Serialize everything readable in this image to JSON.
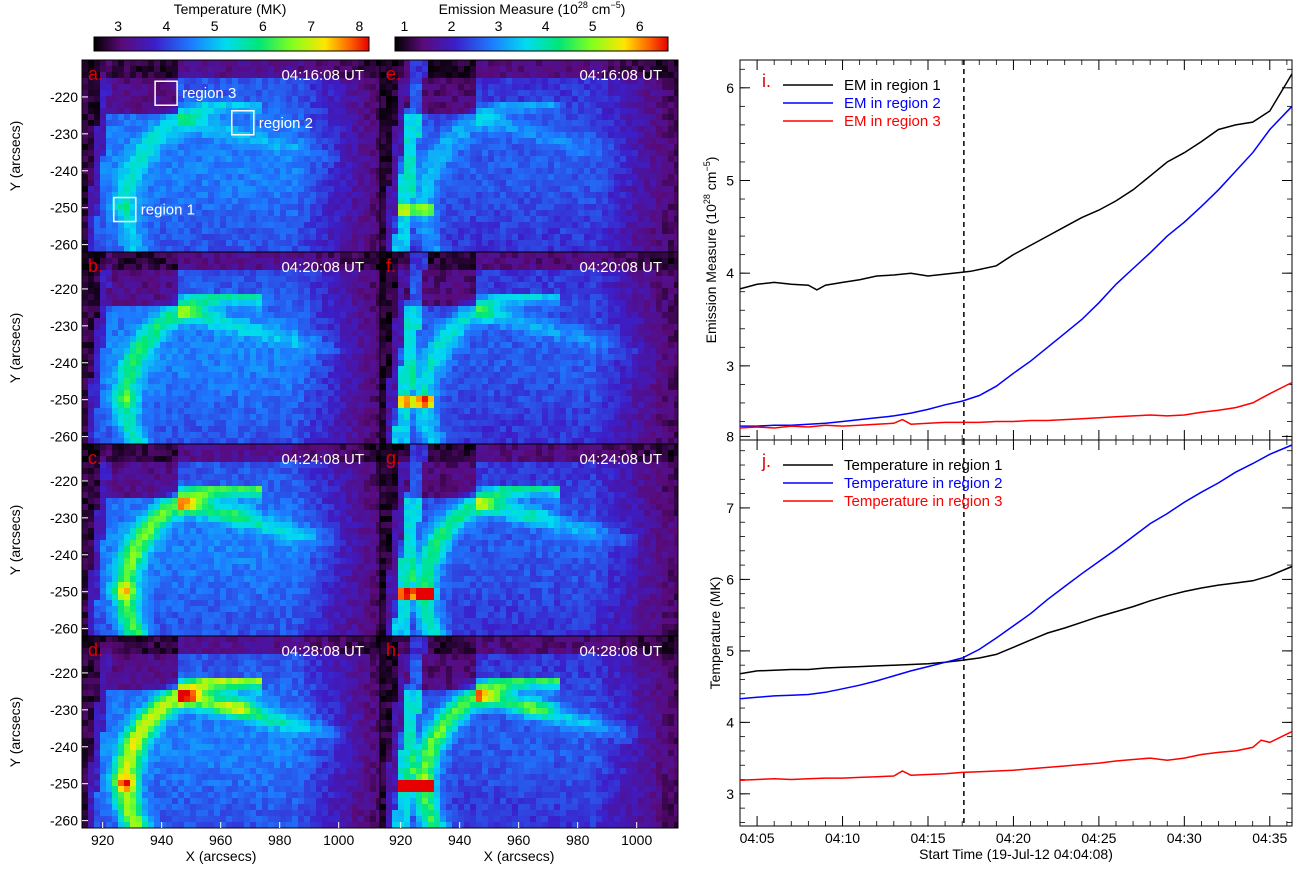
{
  "chart_data": [
    {
      "type": "heatmap",
      "colorbar": {
        "label": "Temperature (MK)",
        "ticks": [
          "3",
          "4",
          "5",
          "6",
          "7",
          "8"
        ],
        "range": [
          2.5,
          8.2
        ]
      },
      "xlabel": "X (arcsecs)",
      "ylabel": "Y (arcsecs)",
      "xticks": [
        "920",
        "940",
        "960",
        "980",
        "1000"
      ],
      "yticks": [
        "-220",
        "-230",
        "-240",
        "-250",
        "-260"
      ],
      "xlim": [
        913,
        1014
      ],
      "ylim": [
        -262,
        -210
      ],
      "panels": [
        {
          "letter": "a.",
          "time": "04:16:08 UT"
        },
        {
          "letter": "b.",
          "time": "04:20:08 UT"
        },
        {
          "letter": "c.",
          "time": "04:24:08 UT"
        },
        {
          "letter": "d.",
          "time": "04:28:08 UT"
        }
      ],
      "regions": [
        {
          "label": "region 1",
          "x": 927.5,
          "y": -250.5
        },
        {
          "label": "region 2",
          "x": 967.5,
          "y": -227
        },
        {
          "label": "region 3",
          "x": 941.5,
          "y": -219
        }
      ]
    },
    {
      "type": "heatmap",
      "colorbar": {
        "label_main": "Emission Measure (10",
        "label_exp": "28",
        "label_unit": " cm",
        "label_exp2": "−5",
        "label_close": ")",
        "ticks": [
          "1",
          "2",
          "3",
          "4",
          "5",
          "6"
        ],
        "range": [
          0.8,
          6.6
        ]
      },
      "xlabel": "X (arcsecs)",
      "xticks": [
        "920",
        "940",
        "960",
        "980",
        "1000"
      ],
      "xlim": [
        913,
        1014
      ],
      "ylim": [
        -262,
        -210
      ],
      "panels": [
        {
          "letter": "e.",
          "time": "04:16:08 UT"
        },
        {
          "letter": "f.",
          "time": "04:20:08 UT"
        },
        {
          "letter": "g.",
          "time": "04:24:08 UT"
        },
        {
          "letter": "h.",
          "time": "04:28:08 UT"
        }
      ]
    },
    {
      "type": "line",
      "panel_letter": "i.",
      "ylabel_main": "Emission Measure (10",
      "ylabel_exp": "28",
      "ylabel_unit": " cm",
      "ylabel_exp2": "−5",
      "ylabel_close": ")",
      "ylim": [
        2.2,
        6.3
      ],
      "yticks": [
        "3",
        "4",
        "5",
        "6"
      ],
      "xlim": [
        4.0,
        36.3
      ],
      "x_units": "minutes after 04:00 UT",
      "vline_x": 17.1,
      "series": [
        {
          "name": "EM in region 1",
          "color": "#000000",
          "x": [
            4.0,
            5,
            6,
            7,
            8,
            8.5,
            9,
            10,
            11,
            12,
            13,
            14,
            15,
            16,
            17,
            17.5,
            18,
            19,
            20,
            20.5,
            21,
            22,
            23,
            24,
            25,
            26,
            27,
            28,
            29,
            30,
            31,
            32,
            33,
            34,
            35,
            36.3
          ],
          "y": [
            3.83,
            3.88,
            3.9,
            3.88,
            3.87,
            3.82,
            3.87,
            3.9,
            3.93,
            3.97,
            3.98,
            4.0,
            3.97,
            3.99,
            4.01,
            4.02,
            4.04,
            4.08,
            4.2,
            4.25,
            4.3,
            4.4,
            4.5,
            4.6,
            4.68,
            4.78,
            4.9,
            5.05,
            5.2,
            5.3,
            5.42,
            5.55,
            5.6,
            5.63,
            5.75,
            6.15
          ]
        },
        {
          "name": "EM in region 2",
          "color": "#0000ff",
          "x": [
            4.0,
            5,
            6,
            7,
            8,
            9,
            10,
            11,
            12,
            13,
            14,
            15,
            16,
            17,
            18,
            19,
            20,
            21,
            22,
            23,
            24,
            25,
            26,
            27,
            28,
            29,
            30,
            31,
            32,
            33,
            34,
            35,
            36.3
          ],
          "y": [
            2.35,
            2.35,
            2.36,
            2.36,
            2.37,
            2.38,
            2.4,
            2.42,
            2.44,
            2.46,
            2.49,
            2.53,
            2.58,
            2.62,
            2.68,
            2.78,
            2.92,
            3.05,
            3.2,
            3.35,
            3.5,
            3.68,
            3.88,
            4.05,
            4.22,
            4.4,
            4.55,
            4.72,
            4.9,
            5.1,
            5.3,
            5.55,
            5.8
          ]
        },
        {
          "name": "EM in region 3",
          "color": "#ff0000",
          "x": [
            4.0,
            5,
            6,
            7,
            8,
            9,
            10,
            11,
            12,
            13,
            13.5,
            14,
            15,
            16,
            17,
            18,
            19,
            20,
            21,
            22,
            23,
            24,
            25,
            26,
            27,
            28,
            29,
            30,
            31,
            32,
            33,
            34,
            34.5,
            35,
            36.3
          ],
          "y": [
            2.33,
            2.34,
            2.33,
            2.35,
            2.34,
            2.36,
            2.35,
            2.36,
            2.37,
            2.38,
            2.42,
            2.37,
            2.38,
            2.39,
            2.39,
            2.39,
            2.4,
            2.4,
            2.41,
            2.41,
            2.42,
            2.43,
            2.44,
            2.45,
            2.46,
            2.47,
            2.46,
            2.47,
            2.5,
            2.52,
            2.55,
            2.6,
            2.65,
            2.7,
            2.82
          ]
        }
      ]
    },
    {
      "type": "line",
      "panel_letter": "j.",
      "ylabel": "Temperature (MK)",
      "xlabel": "Start Time (19-Jul-12 04:04:08)",
      "ylim": [
        2.55,
        7.95
      ],
      "yticks": [
        "3",
        "4",
        "5",
        "6",
        "7",
        "8"
      ],
      "xlim": [
        4.0,
        36.3
      ],
      "x_units": "minutes after 04:00 UT",
      "xticks": [
        {
          "value": 5,
          "label": "04:05"
        },
        {
          "value": 10,
          "label": "04:10"
        },
        {
          "value": 15,
          "label": "04:15"
        },
        {
          "value": 20,
          "label": "04:20"
        },
        {
          "value": 25,
          "label": "04:25"
        },
        {
          "value": 30,
          "label": "04:30"
        },
        {
          "value": 35,
          "label": "04:35"
        }
      ],
      "vline_x": 17.1,
      "series": [
        {
          "name": "Temperature in region 1",
          "color": "#000000",
          "x": [
            4.0,
            5,
            6,
            7,
            8,
            9,
            10,
            11,
            12,
            13,
            14,
            15,
            16,
            17,
            18,
            19,
            20,
            21,
            22,
            23,
            24,
            25,
            26,
            27,
            28,
            29,
            30,
            31,
            32,
            33,
            34,
            35,
            36.3
          ],
          "y": [
            4.68,
            4.72,
            4.73,
            4.74,
            4.74,
            4.76,
            4.77,
            4.78,
            4.79,
            4.8,
            4.81,
            4.82,
            4.84,
            4.87,
            4.9,
            4.95,
            5.05,
            5.15,
            5.25,
            5.32,
            5.4,
            5.48,
            5.55,
            5.62,
            5.7,
            5.77,
            5.83,
            5.88,
            5.92,
            5.95,
            5.98,
            6.05,
            6.18
          ]
        },
        {
          "name": "Temperature in region 2",
          "color": "#0000ff",
          "x": [
            4.0,
            5,
            6,
            7,
            8,
            9,
            10,
            11,
            12,
            13,
            14,
            15,
            16,
            17,
            18,
            19,
            20,
            21,
            22,
            23,
            24,
            25,
            26,
            27,
            28,
            29,
            30,
            31,
            32,
            33,
            34,
            35,
            36.3
          ],
          "y": [
            4.33,
            4.35,
            4.37,
            4.38,
            4.39,
            4.42,
            4.47,
            4.52,
            4.58,
            4.65,
            4.72,
            4.78,
            4.84,
            4.9,
            5.02,
            5.18,
            5.35,
            5.52,
            5.72,
            5.9,
            6.08,
            6.25,
            6.42,
            6.6,
            6.78,
            6.92,
            7.08,
            7.22,
            7.35,
            7.5,
            7.62,
            7.75,
            7.88
          ]
        },
        {
          "name": "Temperature in region 3",
          "color": "#ff0000",
          "x": [
            4.0,
            5,
            6,
            7,
            8,
            9,
            10,
            11,
            12,
            13,
            13.5,
            14,
            15,
            16,
            17,
            18,
            19,
            20,
            21,
            22,
            23,
            24,
            25,
            26,
            27,
            28,
            29,
            30,
            31,
            32,
            33,
            34,
            34.5,
            35,
            36.3
          ],
          "y": [
            3.19,
            3.2,
            3.21,
            3.2,
            3.21,
            3.22,
            3.22,
            3.23,
            3.24,
            3.25,
            3.32,
            3.26,
            3.27,
            3.28,
            3.3,
            3.31,
            3.32,
            3.33,
            3.35,
            3.37,
            3.39,
            3.41,
            3.43,
            3.46,
            3.48,
            3.5,
            3.47,
            3.5,
            3.55,
            3.58,
            3.6,
            3.65,
            3.75,
            3.72,
            3.87
          ]
        }
      ]
    }
  ]
}
